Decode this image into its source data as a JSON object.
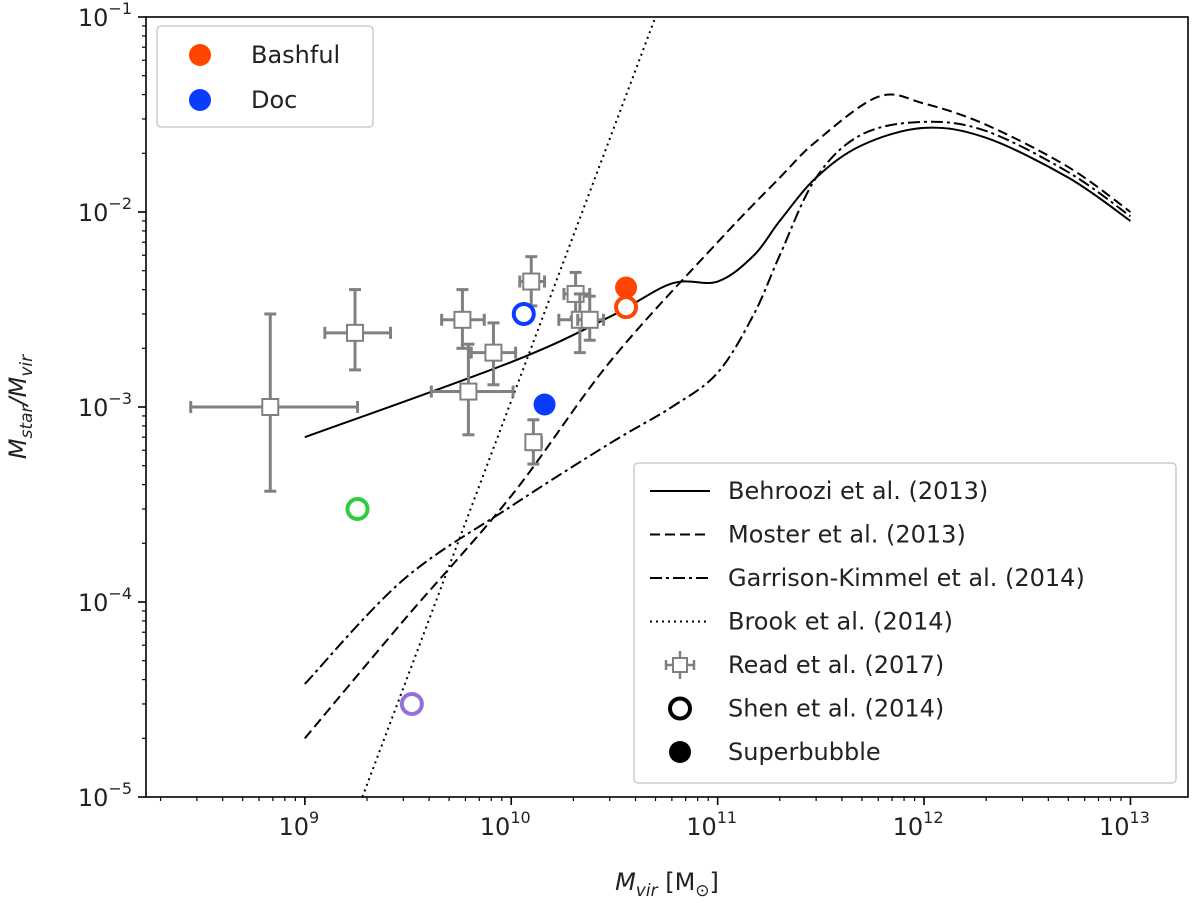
{
  "chart_data": {
    "type": "scatter",
    "xscale": "log",
    "yscale": "log",
    "xlim": [
      170000000.0,
      19000000000000.0
    ],
    "ylim": [
      1e-05,
      0.1
    ],
    "xticks": [
      {
        "value": 1000000000.0,
        "base": "10",
        "exp": "9"
      },
      {
        "value": 10000000000.0,
        "base": "10",
        "exp": "10"
      },
      {
        "value": 100000000000.0,
        "base": "10",
        "exp": "11"
      },
      {
        "value": 1000000000000.0,
        "base": "10",
        "exp": "12"
      },
      {
        "value": 10000000000000.0,
        "base": "10",
        "exp": "13"
      }
    ],
    "yticks": [
      {
        "value": 1e-05,
        "base": "10",
        "exp": "−5"
      },
      {
        "value": 0.0001,
        "base": "10",
        "exp": "−4"
      },
      {
        "value": 0.001,
        "base": "10",
        "exp": "−3"
      },
      {
        "value": 0.01,
        "base": "10",
        "exp": "−2"
      },
      {
        "value": 0.1,
        "base": "10",
        "exp": "−1"
      }
    ],
    "xlabel": {
      "main": "M",
      "sub": "vir",
      "unit_open": " [M",
      "unit_sub": "⊙",
      "unit_close": "]"
    },
    "ylabel": {
      "main": "M",
      "sub": "star",
      "mid": "/M",
      "sub2": "vir"
    },
    "lines": [
      {
        "name": "Behroozi et al. (2013)",
        "style": "solid",
        "points": [
          [
            1000000000.0,
            0.0007
          ],
          [
            10000000000.0,
            0.0017
          ],
          [
            30000000000.0,
            0.0029
          ],
          [
            60000000000.0,
            0.0043
          ],
          [
            100000000000.0,
            0.0044
          ],
          [
            150000000000.0,
            0.006
          ],
          [
            200000000000.0,
            0.009
          ],
          [
            300000000000.0,
            0.015
          ],
          [
            500000000000.0,
            0.022
          ],
          [
            1000000000000.0,
            0.027
          ],
          [
            2000000000000.0,
            0.024
          ],
          [
            5000000000000.0,
            0.015
          ],
          [
            10000000000000.0,
            0.009
          ]
        ]
      },
      {
        "name": "Moster et al. (2013)",
        "style": "dashed",
        "points": [
          [
            1000000000.0,
            2e-05
          ],
          [
            3000000000.0,
            8e-05
          ],
          [
            10000000000.0,
            0.00035
          ],
          [
            30000000000.0,
            0.0017
          ],
          [
            100000000000.0,
            0.007
          ],
          [
            200000000000.0,
            0.015
          ],
          [
            300000000000.0,
            0.023
          ],
          [
            600000000000.0,
            0.039
          ],
          [
            1000000000000.0,
            0.036
          ],
          [
            2000000000000.0,
            0.028
          ],
          [
            5000000000000.0,
            0.017
          ],
          [
            10000000000000.0,
            0.01
          ]
        ]
      },
      {
        "name": "Garrison-Kimmel et al. (2014)",
        "style": "dashdot",
        "points": [
          [
            1000000000.0,
            3.8e-05
          ],
          [
            3000000000.0,
            0.00013
          ],
          [
            10000000000.0,
            0.00031
          ],
          [
            30000000000.0,
            0.00065
          ],
          [
            60000000000.0,
            0.001
          ],
          [
            100000000000.0,
            0.0015
          ],
          [
            150000000000.0,
            0.003
          ],
          [
            200000000000.0,
            0.006
          ],
          [
            300000000000.0,
            0.015
          ],
          [
            500000000000.0,
            0.025
          ],
          [
            1000000000000.0,
            0.029
          ],
          [
            2000000000000.0,
            0.026
          ],
          [
            5000000000000.0,
            0.016
          ],
          [
            10000000000000.0,
            0.0095
          ]
        ]
      },
      {
        "name": "Brook et al. (2014)",
        "style": "dotted",
        "points": [
          [
            1900000000.0,
            1e-05
          ],
          [
            50000000000.0,
            0.1
          ]
        ]
      }
    ],
    "read_points": [
      {
        "x": 680000000.0,
        "y": 0.001,
        "xlo": 280000000.0,
        "xhi": 1800000000.0,
        "ylo": 0.00037,
        "yhi": 0.003
      },
      {
        "x": 1750000000.0,
        "y": 0.0024,
        "xlo": 1250000000.0,
        "xhi": 2600000000.0,
        "ylo": 0.00155,
        "yhi": 0.004
      },
      {
        "x": 5800000000.0,
        "y": 0.0028,
        "xlo": 4600000000.0,
        "xhi": 7400000000.0,
        "ylo": 0.002,
        "yhi": 0.004
      },
      {
        "x": 6200000000.0,
        "y": 0.0012,
        "xlo": 4100000000.0,
        "xhi": 10200000000.0,
        "ylo": 0.00072,
        "yhi": 0.0021
      },
      {
        "x": 8200000000.0,
        "y": 0.0019,
        "xlo": 6400000000.0,
        "xhi": 10500000000.0,
        "ylo": 0.0013,
        "yhi": 0.0027
      },
      {
        "x": 12500000000.0,
        "y": 0.0044,
        "xlo": 11000000000.0,
        "xhi": 14500000000.0,
        "ylo": 0.0033,
        "yhi": 0.0059
      },
      {
        "x": 12800000000.0,
        "y": 0.00066,
        "xlo": 11800000000.0,
        "xhi": 14000000000.0,
        "ylo": 0.00051,
        "yhi": 0.00086
      },
      {
        "x": 20500000000.0,
        "y": 0.0038,
        "xlo": 18000000000.0,
        "xhi": 24000000000.0,
        "ylo": 0.0029,
        "yhi": 0.0049
      },
      {
        "x": 21500000000.0,
        "y": 0.0028,
        "xlo": 17000000000.0,
        "xhi": 25000000000.0,
        "ylo": 0.0019,
        "yhi": 0.0038
      },
      {
        "x": 24000000000.0,
        "y": 0.0028,
        "xlo": 21000000000.0,
        "xhi": 28000000000.0,
        "ylo": 0.0022,
        "yhi": 0.0037
      }
    ],
    "markers": [
      {
        "x": 36000000000.0,
        "y": 0.0041,
        "color": "#ff4500",
        "fill": "filled"
      },
      {
        "x": 36000000000.0,
        "y": 0.00325,
        "color": "#ff4500",
        "fill": "open"
      },
      {
        "x": 11500000000.0,
        "y": 0.003,
        "color": "#0a3cff",
        "fill": "open"
      },
      {
        "x": 14500000000.0,
        "y": 0.00103,
        "color": "#0a3cff",
        "fill": "filled"
      },
      {
        "x": 1800000000.0,
        "y": 0.0003,
        "color": "#2ecc40",
        "fill": "open"
      },
      {
        "x": 3300000000.0,
        "y": 3e-05,
        "color": "#9370db",
        "fill": "open"
      }
    ],
    "legend_top": {
      "placement": "upper-left",
      "entries": [
        {
          "label": "Bashful",
          "color": "#ff4500"
        },
        {
          "label": "Doc",
          "color": "#0a3cff"
        }
      ]
    },
    "legend_bottom": {
      "placement": "lower-right",
      "entries": [
        {
          "label": "Behroozi et al. (2013)",
          "kind": "solid"
        },
        {
          "label": "Moster et al. (2013)",
          "kind": "dashed"
        },
        {
          "label": "Garrison-Kimmel et al. (2014)",
          "kind": "dashdot"
        },
        {
          "label": "Brook et al. (2014)",
          "kind": "dotted"
        },
        {
          "label": "Read et al. (2017)",
          "kind": "errorbar"
        },
        {
          "label": "Shen et al. (2014)",
          "kind": "open-circle"
        },
        {
          "label": "Superbubble",
          "kind": "filled-circle"
        }
      ]
    },
    "colors": {
      "errorbar": "#808080",
      "line": "#000000"
    }
  }
}
